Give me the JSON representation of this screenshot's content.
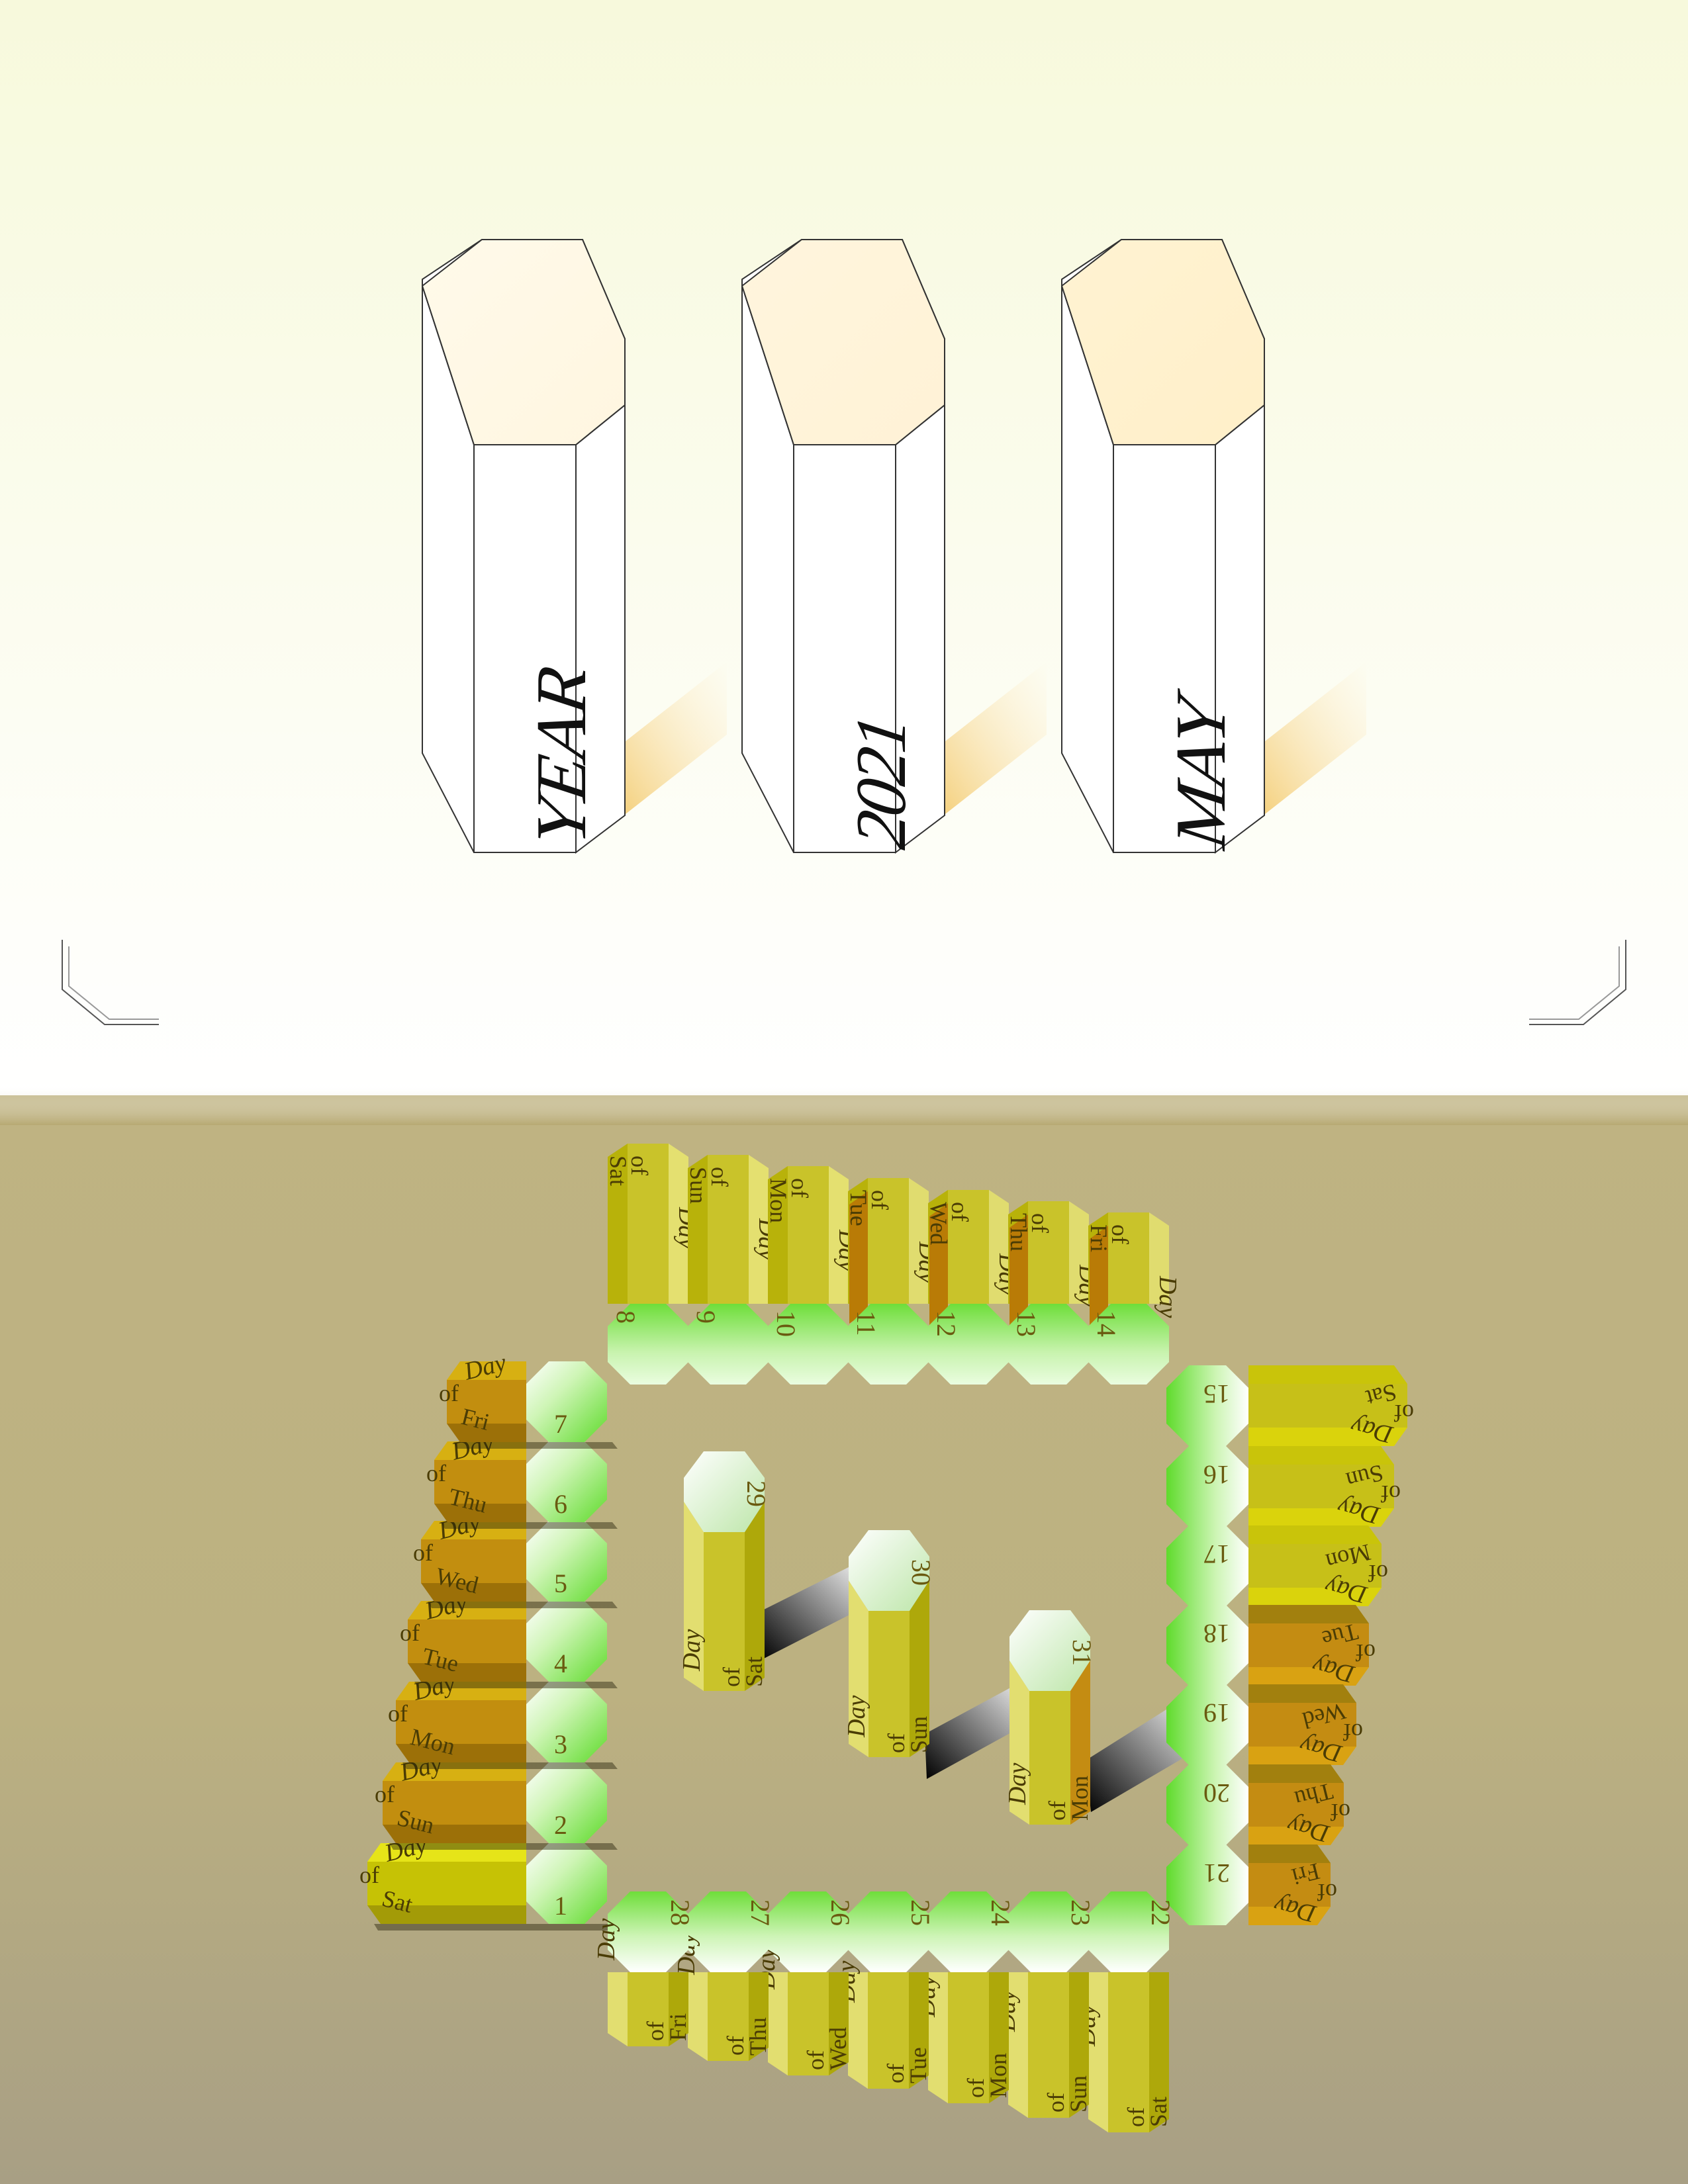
{
  "header": {
    "columns": [
      {
        "id": "year",
        "label": "YEAR"
      },
      {
        "id": "number",
        "label": "2021"
      },
      {
        "id": "month",
        "label": "MAY"
      }
    ]
  },
  "calendar": {
    "day_prefix": "Day",
    "of_word": "of",
    "days": [
      {
        "num": "1",
        "wd": "Sat"
      },
      {
        "num": "2",
        "wd": "Sun"
      },
      {
        "num": "3",
        "wd": "Mon"
      },
      {
        "num": "4",
        "wd": "Tue"
      },
      {
        "num": "5",
        "wd": "Wed"
      },
      {
        "num": "6",
        "wd": "Thu"
      },
      {
        "num": "7",
        "wd": "Fri"
      },
      {
        "num": "8",
        "wd": "Sat"
      },
      {
        "num": "9",
        "wd": "Sun"
      },
      {
        "num": "10",
        "wd": "Mon"
      },
      {
        "num": "11",
        "wd": "Tue"
      },
      {
        "num": "12",
        "wd": "Wed"
      },
      {
        "num": "13",
        "wd": "Thu"
      },
      {
        "num": "14",
        "wd": "Fri"
      },
      {
        "num": "15",
        "wd": "Sat"
      },
      {
        "num": "16",
        "wd": "Sun"
      },
      {
        "num": "17",
        "wd": "Mon"
      },
      {
        "num": "18",
        "wd": "Tue"
      },
      {
        "num": "19",
        "wd": "Wed"
      },
      {
        "num": "20",
        "wd": "Thu"
      },
      {
        "num": "21",
        "wd": "Fri"
      },
      {
        "num": "22",
        "wd": "Sat"
      },
      {
        "num": "23",
        "wd": "Sun"
      },
      {
        "num": "24",
        "wd": "Mon"
      },
      {
        "num": "25",
        "wd": "Tue"
      },
      {
        "num": "26",
        "wd": "Wed"
      },
      {
        "num": "27",
        "wd": "Thu"
      },
      {
        "num": "28",
        "wd": "Fri"
      },
      {
        "num": "29",
        "wd": "Sat"
      },
      {
        "num": "30",
        "wd": "Sun"
      },
      {
        "num": "31",
        "wd": "Mon"
      }
    ]
  }
}
